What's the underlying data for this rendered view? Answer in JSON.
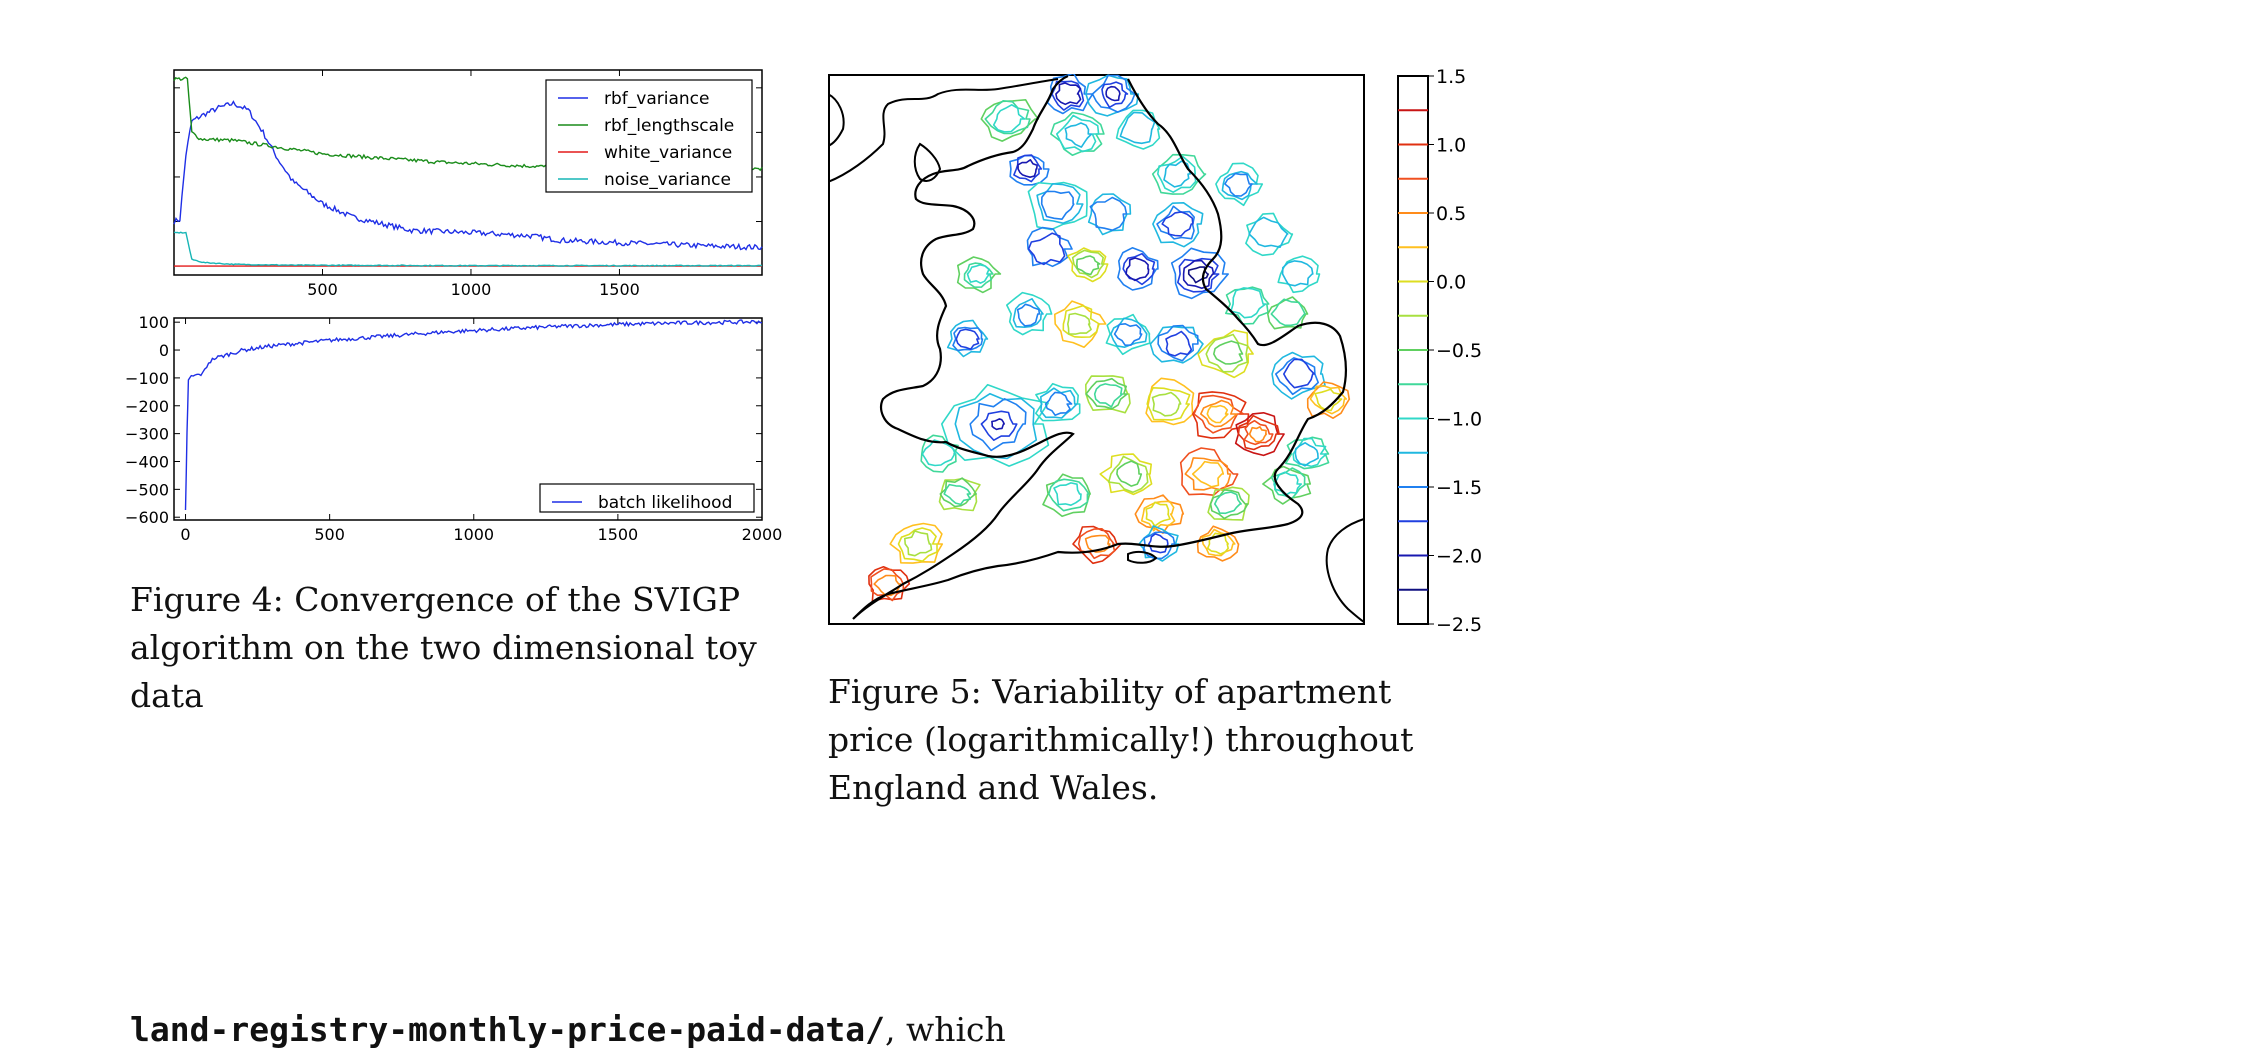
{
  "figure4": {
    "caption": "Figure 4: Convergence of the SVIGP algorithm on the two dimensional toy data",
    "top_chart": {
      "type": "line",
      "x_range": [
        0,
        1980
      ],
      "y_range": [
        -0.2,
        4.4
      ],
      "x_ticks": [
        "500",
        "1000",
        "1500"
      ],
      "x_tick_values": [
        500,
        1000,
        1500
      ],
      "y_ticks": [
        "0",
        "1",
        "2",
        "3",
        "4"
      ],
      "y_tick_values": [
        0,
        1,
        2,
        3,
        4
      ],
      "legend_position": "top-right",
      "series": [
        {
          "name": "rbf_variance",
          "color": "#1f2fe6",
          "x": [
            0,
            20,
            40,
            60,
            100,
            150,
            200,
            250,
            300,
            350,
            400,
            500,
            600,
            700,
            800,
            1000,
            1200,
            1300,
            1400,
            1600,
            1800,
            1980
          ],
          "y": [
            1.0,
            1.05,
            2.5,
            3.25,
            3.4,
            3.55,
            3.65,
            3.5,
            3.0,
            2.4,
            1.9,
            1.4,
            1.1,
            0.95,
            0.8,
            0.75,
            0.68,
            0.58,
            0.55,
            0.5,
            0.45,
            0.42
          ]
        },
        {
          "name": "rbf_lengthscale",
          "color": "#1a8c1a",
          "x": [
            0,
            45,
            60,
            90,
            200,
            300,
            500,
            700,
            900,
            1100,
            1300,
            1500,
            1700,
            1980
          ],
          "y": [
            4.2,
            4.2,
            3.0,
            2.85,
            2.82,
            2.72,
            2.52,
            2.42,
            2.33,
            2.27,
            2.22,
            2.2,
            2.18,
            2.18
          ]
        },
        {
          "name": "white_variance",
          "color": "#e41a1a",
          "x": [
            0,
            1980
          ],
          "y": [
            0.0,
            0.0
          ]
        },
        {
          "name": "noise_variance",
          "color": "#17b5b5",
          "x": [
            0,
            40,
            60,
            100,
            200,
            400,
            1000,
            1980
          ],
          "y": [
            0.75,
            0.75,
            0.15,
            0.08,
            0.04,
            0.02,
            0.01,
            0.01
          ]
        }
      ]
    },
    "bottom_chart": {
      "type": "line",
      "x_range": [
        -40,
        2000
      ],
      "y_range": [
        -610,
        115
      ],
      "x_ticks": [
        "0",
        "500",
        "1000",
        "1500",
        "2000"
      ],
      "x_tick_values": [
        0,
        500,
        1000,
        1500,
        2000
      ],
      "y_ticks": [
        "100",
        "0",
        "−100",
        "−200",
        "−300",
        "−400",
        "−500",
        "−600"
      ],
      "y_tick_values": [
        100,
        0,
        -100,
        -200,
        -300,
        -400,
        -500,
        -600
      ],
      "legend_position": "bottom-right",
      "series": [
        {
          "name": "batch likelihood",
          "color": "#1f2fe6",
          "x": [
            0,
            5,
            10,
            20,
            40,
            60,
            80,
            100,
            150,
            200,
            300,
            400,
            500,
            700,
            900,
            1100,
            1300,
            1500,
            1700,
            1900,
            2000
          ],
          "y": [
            -580,
            -300,
            -110,
            -95,
            -90,
            -85,
            -45,
            -30,
            -15,
            0,
            15,
            25,
            35,
            50,
            65,
            75,
            85,
            92,
            97,
            100,
            102
          ]
        }
      ]
    }
  },
  "figure5": {
    "caption": "Figure 5: Variability of apartment price (logarithmically!) throughout England and Wales.",
    "colorbar": {
      "tick_labels": [
        "1.5",
        "1.0",
        "0.5",
        "0.0",
        "−0.5",
        "−1.0",
        "−1.5",
        "−2.0",
        "−2.5"
      ],
      "tick_values": [
        1.5,
        1.0,
        0.5,
        0.0,
        -0.5,
        -1.0,
        -1.5,
        -2.0,
        -2.5
      ],
      "range": [
        -2.5,
        1.5
      ],
      "level_lines": [
        {
          "value": 1.25,
          "color": "#c81414"
        },
        {
          "value": 1.0,
          "color": "#e03010"
        },
        {
          "value": 0.75,
          "color": "#f05020"
        },
        {
          "value": 0.5,
          "color": "#ff8c1a"
        },
        {
          "value": 0.25,
          "color": "#ffc020"
        },
        {
          "value": 0.0,
          "color": "#dede20"
        },
        {
          "value": -0.25,
          "color": "#a8e040"
        },
        {
          "value": -0.5,
          "color": "#60d060"
        },
        {
          "value": -0.75,
          "color": "#40d89a"
        },
        {
          "value": -1.0,
          "color": "#30d8c8"
        },
        {
          "value": -1.25,
          "color": "#20b8e0"
        },
        {
          "value": -1.5,
          "color": "#2080f0"
        },
        {
          "value": -1.75,
          "color": "#2040e0"
        },
        {
          "value": -2.0,
          "color": "#1818b0"
        },
        {
          "value": -2.25,
          "color": "#101080"
        }
      ]
    }
  },
  "body_text": {
    "url_fragment": "land-registry-monthly-price-paid-data/",
    "trailing": ", which"
  }
}
